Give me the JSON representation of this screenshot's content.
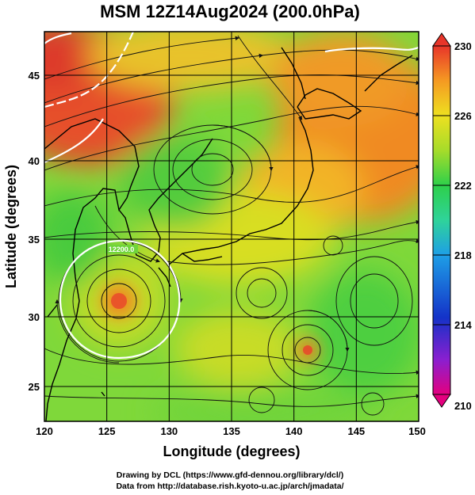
{
  "title": "MSM 12Z14Aug2024 (200.0hPa)",
  "map": {
    "xlabel": "Longitude (degrees)",
    "ylabel": "Latitude  (degrees)",
    "lon_range": [
      120,
      150
    ],
    "lat_range": [
      22.5,
      47.5
    ],
    "x_ticks": [
      "120",
      "125",
      "130",
      "135",
      "140",
      "145",
      "150"
    ],
    "y_ticks": [
      "25",
      "30",
      "35",
      "40",
      "45"
    ],
    "contour_label": "12200.0",
    "colorbar": {
      "min": 210,
      "max": 230,
      "labels": [
        "230",
        "226",
        "222",
        "218",
        "214",
        "210"
      ],
      "colors": [
        "#e4007f",
        "#8a1fd0",
        "#1432c8",
        "#1e9fe6",
        "#2fd39a",
        "#2ed04a",
        "#a6dc2a",
        "#eee020",
        "#f59a22",
        "#e8352a"
      ]
    }
  },
  "credits": {
    "line1": "Drawing by DCL (https://www.gfd-dennou.org/library/dcl/)",
    "line2": "Data from http://database.rish.kyoto-u.ac.jp/arch/jmadata/"
  }
}
